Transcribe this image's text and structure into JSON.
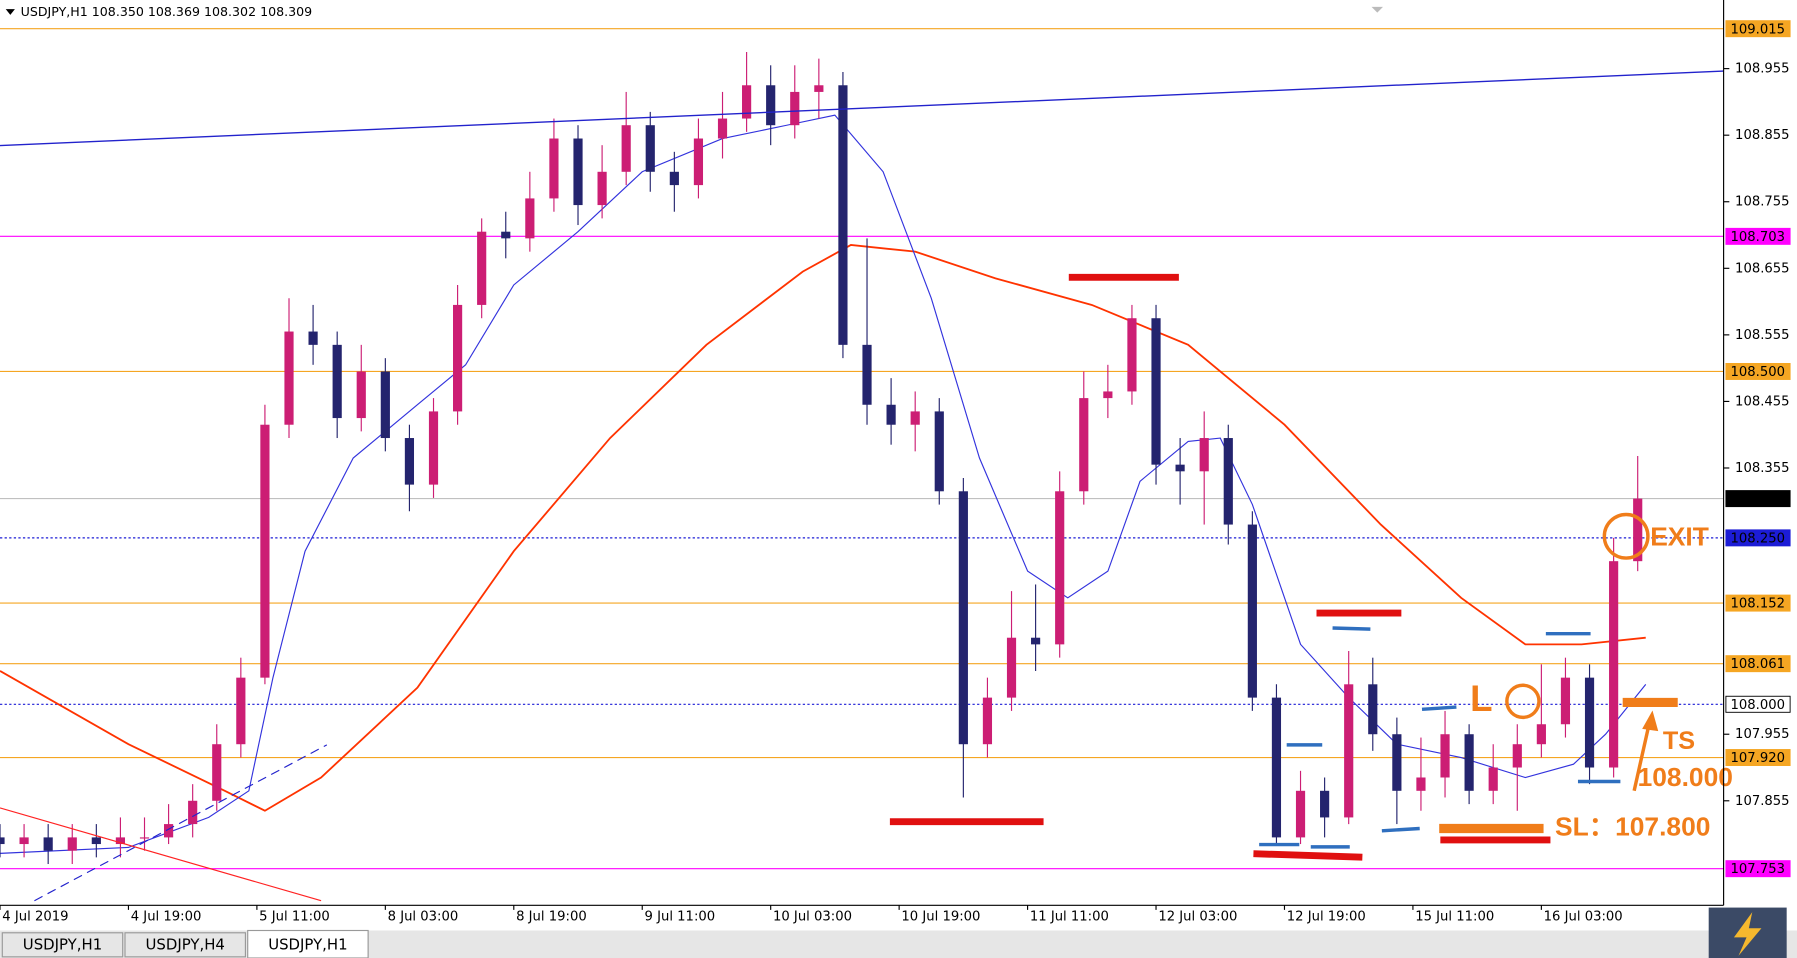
{
  "header": "USDJPY,H1  108.350 108.369 108.302 108.309",
  "tabs": [
    "USDJPY,H1",
    "USDJPY,H4",
    "USDJPY,H1"
  ],
  "active_tab": 2,
  "annotations": {
    "long": "L",
    "exit": "EXIT",
    "ts_label": "TS",
    "ts_value": "108.000",
    "sl": "SL：107.800"
  },
  "chart_data": {
    "type": "candlestick",
    "up_color": "#cc1e74",
    "down_color": "#24246e",
    "xlim": [
      0,
      214.7
    ],
    "ylim": [
      107.698,
      109.034
    ],
    "xticks": [
      {
        "value": 0,
        "label": "4 Jul 2019"
      },
      {
        "value": 16,
        "label": "4 Jul 19:00"
      },
      {
        "value": 32,
        "label": "5 Jul 11:00"
      },
      {
        "value": 48,
        "label": "8 Jul 03:00"
      },
      {
        "value": 64,
        "label": "8 Jul 19:00"
      },
      {
        "value": 80,
        "label": "9 Jul 11:00"
      },
      {
        "value": 96,
        "label": "10 Jul 03:00"
      },
      {
        "value": 112,
        "label": "10 Jul 19:00"
      },
      {
        "value": 128,
        "label": "11 Jul 11:00"
      },
      {
        "value": 144,
        "label": "12 Jul 03:00"
      },
      {
        "value": 160,
        "label": "12 Jul 19:00"
      },
      {
        "value": 176,
        "label": "15 Jul 11:00"
      },
      {
        "value": 192,
        "label": "16 Jul 03:00"
      }
    ],
    "yticks": [
      108.955,
      108.855,
      108.755,
      108.655,
      108.555,
      108.455,
      108.355,
      107.955,
      107.855
    ],
    "levels": [
      {
        "price": 109.015,
        "color": "#f5a623",
        "dotted": false,
        "tag_text": "#ffffff"
      },
      {
        "price": 108.703,
        "color": "#ff00ff",
        "dotted": false,
        "tag_text": "#ffffff"
      },
      {
        "price": {
          "value": 108.5,
          "label": "108.500"
        },
        "color": "#f5a623",
        "dotted": false,
        "tag_text": "#ffffff"
      },
      {
        "price": 108.309,
        "color": "#000000",
        "line_color": "#c0c0c0",
        "dotted": false,
        "tag_text": "#ffffff"
      },
      {
        "price": {
          "value": 108.25,
          "label": "108.250"
        },
        "color": "#1c1cd6",
        "dotted": true,
        "tag_text": "#ffffff"
      },
      {
        "price": 108.152,
        "color": "#f5a623",
        "dotted": false,
        "tag_text": "#ffffff"
      },
      {
        "price": 108.061,
        "color": "#f5a623",
        "dotted": false,
        "tag_text": "#ffffff"
      },
      {
        "price": {
          "value": 108,
          "label": "108.000"
        },
        "color": "#ffffff",
        "line_color": "#1c1cd6",
        "dotted": true,
        "tag_text": "#000000"
      },
      {
        "price": {
          "value": 107.92,
          "label": "107.920"
        },
        "color": "#f5a623",
        "dotted": false,
        "tag_text": "#ffffff"
      },
      {
        "price": 107.753,
        "color": "#ff00ff",
        "dotted": false,
        "tag_text": "#ffffff"
      }
    ],
    "x": [
      0,
      3,
      6,
      9,
      12,
      15,
      18,
      21,
      24,
      27,
      30,
      33,
      36,
      39,
      42,
      45,
      48,
      51,
      54,
      57,
      60,
      63,
      66,
      69,
      72,
      75,
      78,
      81,
      84,
      87,
      90,
      93,
      96,
      99,
      102,
      105,
      108,
      111,
      114,
      117,
      120,
      123,
      126,
      129,
      132,
      135,
      138,
      141,
      144,
      147,
      150,
      153,
      156,
      159,
      162,
      165,
      168,
      171,
      174,
      177,
      180,
      183,
      186,
      189,
      192,
      195,
      198,
      201,
      204
    ],
    "open": [
      107.8,
      107.79,
      107.8,
      107.78,
      107.8,
      107.79,
      107.8,
      107.8,
      107.82,
      107.855,
      107.94,
      108.04,
      108.42,
      108.56,
      108.54,
      108.43,
      108.5,
      108.4,
      108.33,
      108.44,
      108.6,
      108.71,
      108.7,
      108.76,
      108.85,
      108.75,
      108.8,
      108.87,
      108.8,
      108.78,
      108.85,
      108.88,
      108.93,
      108.87,
      108.92,
      108.93,
      108.54,
      108.45,
      108.42,
      108.44,
      108.32,
      107.94,
      108.01,
      108.1,
      108.09,
      108.32,
      108.46,
      108.47,
      108.58,
      108.36,
      108.35,
      108.4,
      108.27,
      108.01,
      107.8,
      107.87,
      107.83,
      108.03,
      107.955,
      107.87,
      107.89,
      107.955,
      107.87,
      107.905,
      107.94,
      107.97,
      108.04,
      107.905,
      108.215
    ],
    "high": [
      107.82,
      107.82,
      107.82,
      107.82,
      107.82,
      107.83,
      107.83,
      107.85,
      107.88,
      107.97,
      108.07,
      108.45,
      108.61,
      108.6,
      108.56,
      108.54,
      108.52,
      108.42,
      108.46,
      108.63,
      108.73,
      108.74,
      108.8,
      108.88,
      108.87,
      108.84,
      108.92,
      108.89,
      108.83,
      108.88,
      108.92,
      108.98,
      108.96,
      108.96,
      108.97,
      108.95,
      108.7,
      108.49,
      108.47,
      108.46,
      108.34,
      108.04,
      108.17,
      108.18,
      108.35,
      108.5,
      108.51,
      108.6,
      108.6,
      108.4,
      108.44,
      108.42,
      108.29,
      108.03,
      107.9,
      107.89,
      108.08,
      108.07,
      107.98,
      107.95,
      107.99,
      107.97,
      107.94,
      107.97,
      108.06,
      108.07,
      108.06,
      108.25,
      108.373
    ],
    "low": [
      107.77,
      107.77,
      107.76,
      107.76,
      107.77,
      107.77,
      107.78,
      107.79,
      107.8,
      107.84,
      107.92,
      108.03,
      108.4,
      108.51,
      108.4,
      108.41,
      108.38,
      108.29,
      108.31,
      108.42,
      108.58,
      108.67,
      108.68,
      108.74,
      108.72,
      108.73,
      108.78,
      108.77,
      108.74,
      108.76,
      108.82,
      108.86,
      108.84,
      108.85,
      108.88,
      108.52,
      108.42,
      108.39,
      108.38,
      108.3,
      107.86,
      107.92,
      107.99,
      108.05,
      108.07,
      108.3,
      108.43,
      108.45,
      108.33,
      108.3,
      108.27,
      108.24,
      107.99,
      107.79,
      107.79,
      107.8,
      107.82,
      107.93,
      107.82,
      107.84,
      107.86,
      107.85,
      107.85,
      107.84,
      107.92,
      107.95,
      107.88,
      107.89,
      108.2
    ],
    "close": [
      107.79,
      107.8,
      107.78,
      107.8,
      107.79,
      107.8,
      107.8,
      107.82,
      107.855,
      107.94,
      108.04,
      108.42,
      108.56,
      108.54,
      108.43,
      108.5,
      108.4,
      108.33,
      108.44,
      108.6,
      108.71,
      108.7,
      108.76,
      108.85,
      108.75,
      108.8,
      108.87,
      108.8,
      108.78,
      108.85,
      108.88,
      108.93,
      108.87,
      108.92,
      108.93,
      108.54,
      108.45,
      108.42,
      108.44,
      108.32,
      107.94,
      108.01,
      108.1,
      108.09,
      108.32,
      108.46,
      108.47,
      108.58,
      108.36,
      108.35,
      108.4,
      108.27,
      108.01,
      107.8,
      107.87,
      107.83,
      108.03,
      107.955,
      107.87,
      107.89,
      107.955,
      107.87,
      107.905,
      107.94,
      107.97,
      108.04,
      107.905,
      108.215,
      108.309
    ],
    "averages": [
      {
        "color": "#ff3300",
        "x": [
          0,
          16,
          28,
          33,
          40,
          52,
          64,
          76,
          88,
          100,
          106,
          114,
          124,
          136,
          148,
          160,
          172,
          182,
          190,
          197,
          205
        ],
        "values": [
          108.05,
          107.94,
          107.87,
          107.84,
          107.89,
          108.025,
          108.23,
          108.4,
          108.54,
          108.65,
          108.69,
          108.68,
          108.64,
          108.6,
          108.54,
          108.42,
          108.27,
          108.16,
          108.09,
          108.09,
          108.1
        ]
      },
      {
        "color": "#3333dd",
        "x": [
          0,
          16,
          26,
          31,
          34,
          38,
          44,
          52,
          58,
          64,
          72,
          80,
          90,
          98,
          104,
          110,
          116,
          122,
          128,
          133,
          138,
          142,
          148,
          152,
          156,
          162,
          168,
          174,
          182,
          190,
          196,
          200,
          205
        ],
        "values": [
          107.776,
          107.785,
          107.83,
          107.87,
          108.04,
          108.23,
          108.37,
          108.45,
          108.51,
          108.63,
          108.71,
          108.8,
          108.85,
          108.87,
          108.885,
          108.8,
          108.61,
          108.37,
          108.2,
          108.16,
          108.2,
          108.335,
          108.395,
          108.4,
          108.3,
          108.09,
          108.01,
          107.94,
          107.92,
          107.89,
          107.91,
          107.955,
          108.03
        ]
      }
    ]
  }
}
